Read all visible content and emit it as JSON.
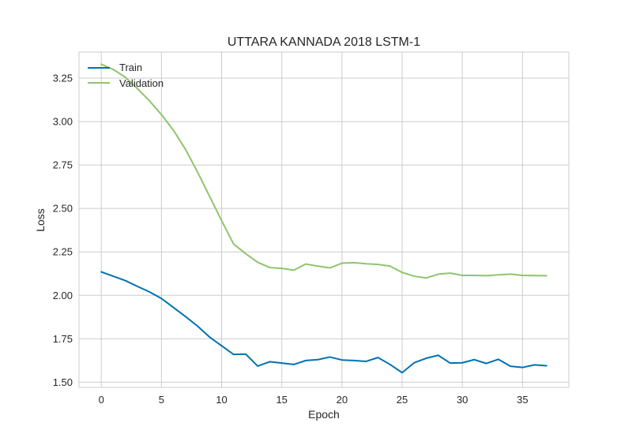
{
  "chart_data": {
    "type": "line",
    "title": "UTTARA KANNADA 2018 LSTM-1",
    "xlabel": "Epoch",
    "ylabel": "Loss",
    "xlim": [
      -1.85,
      38.85
    ],
    "ylim": [
      1.47,
      3.4
    ],
    "xticks": [
      0,
      5,
      10,
      15,
      20,
      25,
      30,
      35
    ],
    "yticks": [
      1.5,
      1.75,
      2.0,
      2.25,
      2.5,
      2.75,
      3.0,
      3.25
    ],
    "ytick_labels": [
      "1.50",
      "1.75",
      "2.00",
      "2.25",
      "2.50",
      "2.75",
      "3.00",
      "3.25"
    ],
    "grid": true,
    "legend_position": "top-left",
    "x": [
      0,
      1,
      2,
      3,
      4,
      5,
      6,
      7,
      8,
      9,
      10,
      11,
      12,
      13,
      14,
      15,
      16,
      17,
      18,
      19,
      20,
      21,
      22,
      23,
      24,
      25,
      26,
      27,
      28,
      29,
      30,
      31,
      32,
      33,
      34,
      35,
      36,
      37
    ],
    "series": [
      {
        "name": "Train",
        "color": "#0072b2",
        "values": [
          2.135,
          2.11,
          2.085,
          2.052,
          2.02,
          1.982,
          1.93,
          1.878,
          1.823,
          1.76,
          1.71,
          1.66,
          1.662,
          1.593,
          1.618,
          1.61,
          1.602,
          1.625,
          1.63,
          1.645,
          1.628,
          1.625,
          1.62,
          1.642,
          1.602,
          1.555,
          1.612,
          1.638,
          1.655,
          1.61,
          1.612,
          1.63,
          1.608,
          1.632,
          1.592,
          1.585,
          1.6,
          1.595
        ]
      },
      {
        "name": "Validation",
        "color": "#8fc46e",
        "values": [
          3.33,
          3.3,
          3.255,
          3.19,
          3.12,
          3.04,
          2.95,
          2.84,
          2.71,
          2.57,
          2.43,
          2.295,
          2.24,
          2.19,
          2.16,
          2.155,
          2.145,
          2.18,
          2.168,
          2.158,
          2.185,
          2.188,
          2.182,
          2.178,
          2.168,
          2.132,
          2.11,
          2.1,
          2.122,
          2.128,
          2.115,
          2.115,
          2.113,
          2.118,
          2.122,
          2.115,
          2.114,
          2.113
        ]
      }
    ]
  }
}
